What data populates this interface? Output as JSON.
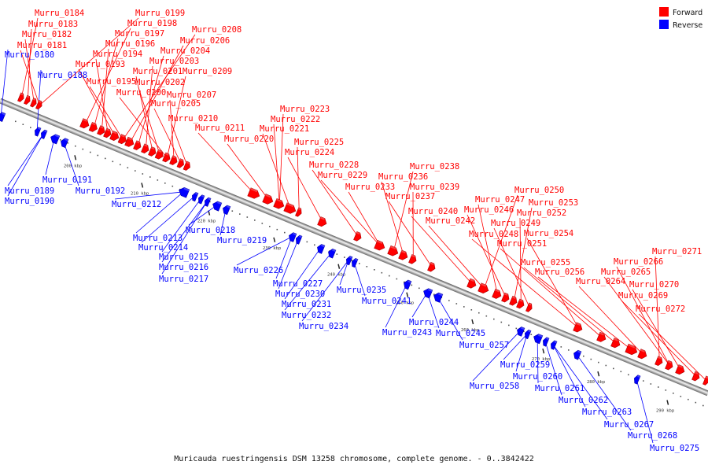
{
  "legend": {
    "forward_label": "Forward",
    "reverse_label": "Reverse",
    "forward_color": "#ff0000",
    "reverse_color": "#0000ff"
  },
  "caption": "Muricauda ruestringensis DSM 13258 chromosome, complete genome. - 0..3842422",
  "ticks": [
    "200 kbp",
    "210 kbp",
    "220 kbp",
    "230 kbp",
    "240 kbp",
    "250 kbp",
    "260 kbp",
    "270 kbp",
    "280 kbp",
    "290 kbp"
  ],
  "forward_labels": [
    "Murru_0184",
    "Murru_0183",
    "Murru_0182",
    "Murru_0181",
    "Murru_0199",
    "Murru_0198",
    "Murru_0197",
    "Murru_0196",
    "Murru_0194",
    "Murru_0193",
    "Murru_0195",
    "Murru_0208",
    "Murru_0206",
    "Murru_0204",
    "Murru_0203",
    "Murru_0201",
    "Murru_0202",
    "Murru_0200",
    "Murru_0209",
    "Murru_0207",
    "Murru_0205",
    "Murru_0210",
    "Murru_0211",
    "Murru_0220",
    "Murru_0223",
    "Murru_0222",
    "Murru_0221",
    "Murru_0225",
    "Murru_0224",
    "Murru_0228",
    "Murru_0229",
    "Murru_0233",
    "Murru_0238",
    "Murru_0236",
    "Murru_0239",
    "Murru_0237",
    "Murru_0240",
    "Murru_0242",
    "Murru_0250",
    "Murru_0247",
    "Murru_0246",
    "Murru_0253",
    "Murru_0252",
    "Murru_0249",
    "Murru_0248",
    "Murru_0254",
    "Murru_0251",
    "Murru_0255",
    "Murru_0256",
    "Murru_0264",
    "Murru_0271",
    "Murru_0266",
    "Murru_0265",
    "Murru_0270",
    "Murru_0269",
    "Murru_0272"
  ],
  "reverse_labels": [
    "Murru_0180",
    "Murru_0188",
    "Murru_0189",
    "Murru_0190",
    "Murru_0191",
    "Murru_0192",
    "Murru_0212",
    "Murru_0213",
    "Murru_0214",
    "Murru_0215",
    "Murru_0216",
    "Murru_0217",
    "Murru_0218",
    "Murru_0219",
    "Murru_0226",
    "Murru_0227",
    "Murru_0230",
    "Murru_0231",
    "Murru_0232",
    "Murru_0234",
    "Murru_0235",
    "Murru_0241",
    "Murru_0243",
    "Murru_0244",
    "Murru_0245",
    "Murru_0257",
    "Murru_0258",
    "Murru_0259",
    "Murru_0260",
    "Murru_0261",
    "Murru_0262",
    "Murru_0263",
    "Murru_0267",
    "Murru_0268",
    "Murru_0275"
  ]
}
